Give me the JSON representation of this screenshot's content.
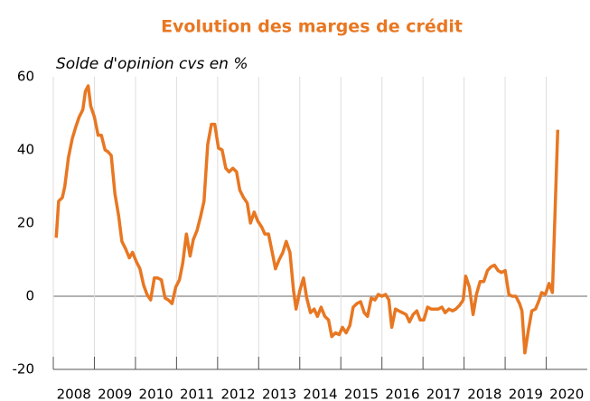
{
  "chart_data": {
    "type": "line",
    "title": "Evolution des marges de crédit",
    "subtitle": "Solde d'opinion cvs en %",
    "x": [
      2008.07,
      2008.13,
      2008.22,
      2008.28,
      2008.37,
      2008.46,
      2008.54,
      2008.63,
      2008.72,
      2008.78,
      2008.85,
      2008.91,
      2009.0,
      2009.09,
      2009.17,
      2009.26,
      2009.33,
      2009.41,
      2009.5,
      2009.59,
      2009.67,
      2009.76,
      2009.85,
      2009.93,
      2010.02,
      2010.11,
      2010.2,
      2010.28,
      2010.37,
      2010.46,
      2010.54,
      2010.63,
      2010.72,
      2010.8,
      2010.89,
      2010.98,
      2011.07,
      2011.15,
      2011.24,
      2011.33,
      2011.41,
      2011.5,
      2011.59,
      2011.67,
      2011.76,
      2011.85,
      2011.93,
      2012.02,
      2012.11,
      2012.2,
      2012.28,
      2012.37,
      2012.46,
      2012.54,
      2012.63,
      2012.72,
      2012.8,
      2012.89,
      2012.98,
      2013.07,
      2013.15,
      2013.24,
      2013.33,
      2013.41,
      2013.5,
      2013.59,
      2013.67,
      2013.76,
      2013.85,
      2013.91,
      2014.0,
      2014.09,
      2014.17,
      2014.26,
      2014.35,
      2014.43,
      2014.52,
      2014.61,
      2014.7,
      2014.78,
      2014.87,
      2014.96,
      2015.04,
      2015.13,
      2015.22,
      2015.3,
      2015.39,
      2015.48,
      2015.57,
      2015.65,
      2015.74,
      2015.83,
      2015.91,
      2016.0,
      2016.09,
      2016.17,
      2016.24,
      2016.33,
      2016.41,
      2016.5,
      2016.59,
      2016.67,
      2016.76,
      2016.85,
      2016.93,
      2017.02,
      2017.11,
      2017.2,
      2017.28,
      2017.37,
      2017.46,
      2017.54,
      2017.63,
      2017.72,
      2017.8,
      2017.89,
      2017.98,
      2018.04,
      2018.13,
      2018.22,
      2018.3,
      2018.39,
      2018.48,
      2018.57,
      2018.65,
      2018.74,
      2018.83,
      2018.91,
      2019.0,
      2019.09,
      2019.17,
      2019.26,
      2019.35,
      2019.41,
      2019.48,
      2019.57,
      2019.65,
      2019.74,
      2019.83,
      2019.89,
      2019.98,
      2020.07,
      2020.15,
      2020.28
    ],
    "series": [
      {
        "color": "#e87722",
        "values": [
          16,
          26,
          27,
          30,
          38,
          43,
          46,
          49,
          51,
          56,
          57.5,
          52,
          49,
          44,
          44,
          40,
          39.5,
          38.5,
          28,
          22,
          15,
          13,
          10.5,
          12,
          9.5,
          7.5,
          3,
          0.5,
          -1,
          5,
          5,
          4.5,
          -0.5,
          -1,
          -2,
          2.5,
          4.5,
          9,
          17,
          11,
          15.5,
          18,
          22,
          26,
          41.5,
          47,
          47,
          40.5,
          40,
          35,
          34,
          35,
          34,
          29,
          27,
          25.5,
          20,
          23,
          20.5,
          19,
          17,
          17,
          12,
          7.5,
          10,
          12,
          15,
          12,
          1.5,
          -3.5,
          1.5,
          5,
          -0.5,
          -4.5,
          -3.5,
          -5.5,
          -3,
          -5.5,
          -6.5,
          -11,
          -10,
          -10.5,
          -8.5,
          -10,
          -8,
          -3,
          -2,
          -1.5,
          -4.5,
          -5.5,
          -0.5,
          -1,
          0.5,
          0,
          0.5,
          -1,
          -8.5,
          -3.5,
          -4,
          -4.5,
          -5,
          -7,
          -5,
          -4,
          -6.5,
          -6.5,
          -3,
          -3.5,
          -3.5,
          -3.5,
          -3,
          -4.5,
          -3.5,
          -4,
          -3.5,
          -2.5,
          -1,
          5.5,
          2.5,
          -5,
          0.5,
          4,
          4,
          7,
          8,
          8.5,
          7,
          6.5,
          7,
          0.5,
          0,
          0,
          -2,
          -4,
          -15.5,
          -9,
          -4,
          -3.5,
          -1,
          1,
          0.5,
          3.5,
          1,
          45.5
        ]
      }
    ],
    "xlim": [
      2008,
      2021
    ],
    "xticks": [
      2008,
      2009,
      2010,
      2011,
      2012,
      2013,
      2014,
      2015,
      2016,
      2017,
      2018,
      2019,
      2020
    ],
    "ylim": [
      -20,
      60
    ],
    "yticks": [
      -20,
      0,
      20,
      40,
      60
    ],
    "grid": true
  }
}
